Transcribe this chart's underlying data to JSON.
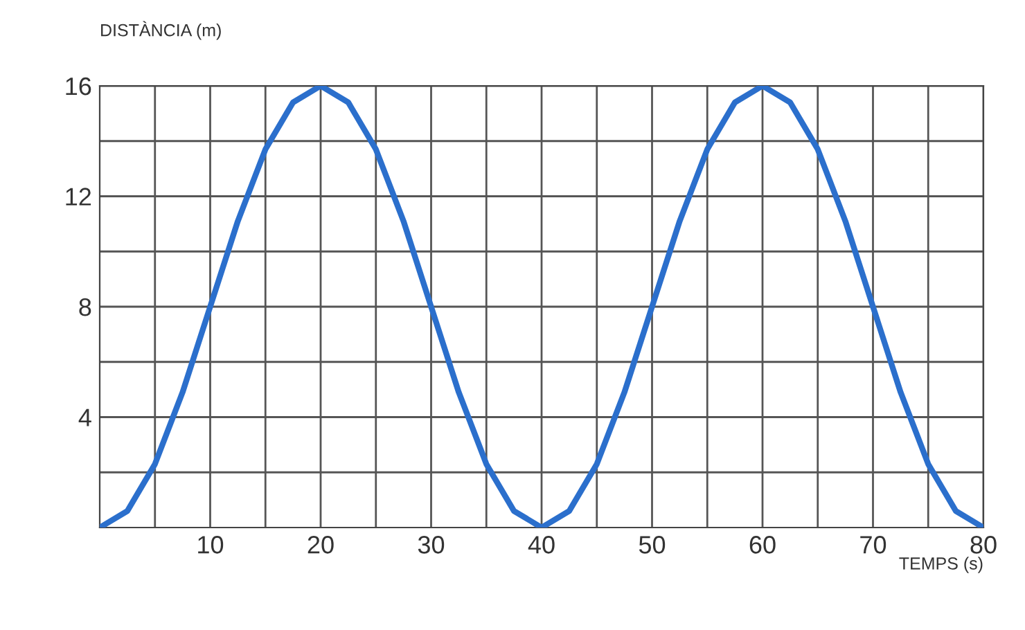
{
  "chart_data": {
    "type": "line",
    "xlabel": "TEMPS (s)",
    "ylabel": "DISTÀNCIA (m)",
    "x": [
      0,
      2.5,
      5,
      7.5,
      10,
      12.5,
      15,
      17.5,
      20,
      22.5,
      25,
      27.5,
      30,
      32.5,
      35,
      37.5,
      40,
      42.5,
      45,
      47.5,
      50,
      52.5,
      55,
      57.5,
      60,
      62.5,
      65,
      67.5,
      70,
      72.5,
      75,
      77.5,
      80
    ],
    "series": [
      {
        "color": "#2b6fcc",
        "values": [
          0,
          0.6,
          2.3,
          4.9,
          8,
          11.1,
          13.7,
          15.4,
          16,
          15.4,
          13.7,
          11.1,
          8,
          4.9,
          2.3,
          0.6,
          0,
          0.6,
          2.3,
          4.9,
          8,
          11.1,
          13.7,
          15.4,
          16,
          15.4,
          13.7,
          11.1,
          8,
          4.9,
          2.3,
          0.6,
          0
        ]
      }
    ],
    "xlim": [
      0,
      80
    ],
    "ylim": [
      0,
      16
    ],
    "xticks": [
      {
        "value": 5,
        "label": null
      },
      10,
      {
        "value": 15,
        "label": null
      },
      20,
      {
        "value": 25,
        "label": null
      },
      30,
      {
        "value": 35,
        "label": null
      },
      40,
      {
        "value": 45,
        "label": null
      },
      50,
      {
        "value": 55,
        "label": null
      },
      60,
      {
        "value": 65,
        "label": null
      },
      70,
      {
        "value": 75,
        "label": null
      },
      80
    ],
    "yticks": [
      {
        "value": 2,
        "label": null
      },
      4,
      {
        "value": 6,
        "label": null
      },
      8,
      {
        "value": 10,
        "label": null
      },
      12,
      {
        "value": 14,
        "label": null
      },
      16
    ],
    "grid": true,
    "marker": "none",
    "line_style": "solid"
  }
}
